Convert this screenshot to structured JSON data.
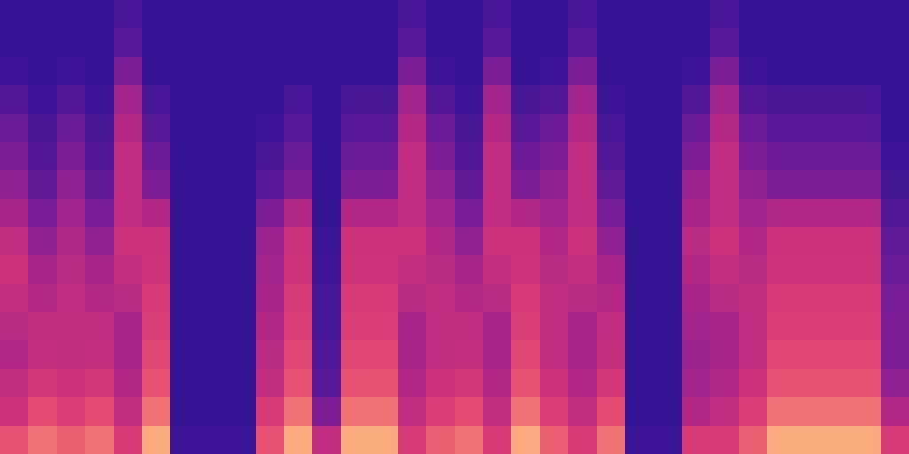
{
  "chart_data": {
    "type": "heatmap",
    "xlim": [
      0,
      32
    ],
    "ylim": [
      0,
      16
    ],
    "zlim": [
      0,
      1
    ],
    "tick_labels": false,
    "z": [
      [
        0.7,
        0.55,
        0.5,
        0.45,
        0.48,
        0.52,
        0.55,
        0.5,
        0.42,
        0.35,
        0.3,
        0.25,
        0.18,
        0.12,
        0.1,
        0.1
      ],
      [
        0.8,
        0.68,
        0.58,
        0.52,
        0.5,
        0.46,
        0.42,
        0.35,
        0.28,
        0.22,
        0.18,
        0.15,
        0.12,
        0.1,
        0.1,
        0.1
      ],
      [
        0.75,
        0.62,
        0.55,
        0.5,
        0.5,
        0.5,
        0.48,
        0.45,
        0.4,
        0.35,
        0.3,
        0.25,
        0.18,
        0.12,
        0.1,
        0.1
      ],
      [
        0.8,
        0.68,
        0.58,
        0.52,
        0.5,
        0.46,
        0.42,
        0.35,
        0.28,
        0.22,
        0.18,
        0.15,
        0.12,
        0.1,
        0.1,
        0.1
      ],
      [
        0.6,
        0.5,
        0.45,
        0.42,
        0.42,
        0.48,
        0.52,
        0.55,
        0.5,
        0.5,
        0.5,
        0.46,
        0.4,
        0.3,
        0.2,
        0.15
      ],
      [
        0.92,
        0.8,
        0.7,
        0.66,
        0.62,
        0.6,
        0.56,
        0.55,
        0.45,
        0.3,
        0.25,
        0.2,
        0.15,
        0.1,
        0.1,
        0.1
      ],
      [
        0.12,
        0.1,
        0.1,
        0.1,
        0.1,
        0.1,
        0.1,
        0.1,
        0.1,
        0.1,
        0.1,
        0.1,
        0.1,
        0.1,
        0.1,
        0.1
      ],
      [
        0.12,
        0.1,
        0.1,
        0.1,
        0.1,
        0.1,
        0.1,
        0.1,
        0.1,
        0.1,
        0.1,
        0.1,
        0.1,
        0.1,
        0.1,
        0.1
      ],
      [
        0.12,
        0.1,
        0.1,
        0.1,
        0.1,
        0.1,
        0.1,
        0.1,
        0.1,
        0.1,
        0.1,
        0.1,
        0.1,
        0.1,
        0.1,
        0.1
      ],
      [
        0.7,
        0.6,
        0.5,
        0.48,
        0.45,
        0.42,
        0.4,
        0.38,
        0.3,
        0.2,
        0.15,
        0.12,
        0.1,
        0.1,
        0.1,
        0.1
      ],
      [
        0.92,
        0.8,
        0.7,
        0.66,
        0.62,
        0.6,
        0.56,
        0.55,
        0.45,
        0.3,
        0.25,
        0.2,
        0.15,
        0.1,
        0.1,
        0.1
      ],
      [
        0.5,
        0.3,
        0.2,
        0.18,
        0.15,
        0.15,
        0.13,
        0.12,
        0.1,
        0.1,
        0.1,
        0.1,
        0.1,
        0.1,
        0.1,
        0.1
      ],
      [
        0.92,
        0.8,
        0.7,
        0.66,
        0.62,
        0.6,
        0.56,
        0.55,
        0.45,
        0.3,
        0.25,
        0.2,
        0.15,
        0.1,
        0.1,
        0.1
      ],
      [
        0.92,
        0.8,
        0.7,
        0.66,
        0.62,
        0.6,
        0.56,
        0.55,
        0.45,
        0.3,
        0.25,
        0.2,
        0.15,
        0.1,
        0.1,
        0.1
      ],
      [
        0.6,
        0.5,
        0.45,
        0.42,
        0.42,
        0.48,
        0.52,
        0.55,
        0.5,
        0.5,
        0.5,
        0.46,
        0.4,
        0.3,
        0.2,
        0.15
      ],
      [
        0.75,
        0.62,
        0.55,
        0.5,
        0.5,
        0.5,
        0.48,
        0.45,
        0.4,
        0.35,
        0.3,
        0.25,
        0.18,
        0.12,
        0.1,
        0.1
      ],
      [
        0.8,
        0.68,
        0.58,
        0.52,
        0.5,
        0.46,
        0.42,
        0.35,
        0.28,
        0.22,
        0.18,
        0.15,
        0.12,
        0.1,
        0.1,
        0.1
      ],
      [
        0.6,
        0.5,
        0.45,
        0.42,
        0.42,
        0.48,
        0.52,
        0.55,
        0.5,
        0.5,
        0.5,
        0.46,
        0.4,
        0.3,
        0.2,
        0.15
      ],
      [
        0.92,
        0.8,
        0.7,
        0.66,
        0.62,
        0.6,
        0.56,
        0.55,
        0.45,
        0.3,
        0.25,
        0.2,
        0.15,
        0.1,
        0.1,
        0.1
      ],
      [
        0.75,
        0.62,
        0.55,
        0.5,
        0.5,
        0.5,
        0.48,
        0.45,
        0.4,
        0.35,
        0.3,
        0.25,
        0.18,
        0.12,
        0.1,
        0.1
      ],
      [
        0.6,
        0.5,
        0.45,
        0.42,
        0.42,
        0.48,
        0.52,
        0.55,
        0.5,
        0.5,
        0.5,
        0.46,
        0.4,
        0.3,
        0.2,
        0.15
      ],
      [
        0.8,
        0.68,
        0.58,
        0.52,
        0.5,
        0.46,
        0.42,
        0.35,
        0.28,
        0.22,
        0.18,
        0.15,
        0.12,
        0.1,
        0.1,
        0.1
      ],
      [
        0.12,
        0.1,
        0.1,
        0.1,
        0.1,
        0.1,
        0.1,
        0.1,
        0.1,
        0.1,
        0.1,
        0.1,
        0.1,
        0.1,
        0.1,
        0.1
      ],
      [
        0.12,
        0.1,
        0.1,
        0.1,
        0.1,
        0.1,
        0.1,
        0.1,
        0.1,
        0.1,
        0.1,
        0.1,
        0.1,
        0.1,
        0.1,
        0.1
      ],
      [
        0.6,
        0.45,
        0.4,
        0.38,
        0.4,
        0.42,
        0.45,
        0.48,
        0.42,
        0.38,
        0.3,
        0.25,
        0.18,
        0.12,
        0.1,
        0.1
      ],
      [
        0.6,
        0.5,
        0.45,
        0.42,
        0.42,
        0.48,
        0.52,
        0.55,
        0.5,
        0.5,
        0.5,
        0.46,
        0.4,
        0.3,
        0.2,
        0.15
      ],
      [
        0.75,
        0.62,
        0.55,
        0.5,
        0.5,
        0.5,
        0.48,
        0.45,
        0.4,
        0.35,
        0.3,
        0.25,
        0.18,
        0.12,
        0.1,
        0.1
      ],
      [
        0.92,
        0.8,
        0.7,
        0.66,
        0.62,
        0.6,
        0.56,
        0.55,
        0.45,
        0.3,
        0.25,
        0.2,
        0.15,
        0.1,
        0.1,
        0.1
      ],
      [
        0.92,
        0.8,
        0.7,
        0.66,
        0.62,
        0.6,
        0.56,
        0.55,
        0.45,
        0.3,
        0.25,
        0.2,
        0.15,
        0.1,
        0.1,
        0.1
      ],
      [
        0.92,
        0.8,
        0.7,
        0.66,
        0.62,
        0.6,
        0.56,
        0.55,
        0.45,
        0.3,
        0.25,
        0.2,
        0.15,
        0.1,
        0.1,
        0.1
      ],
      [
        0.92,
        0.8,
        0.7,
        0.66,
        0.62,
        0.6,
        0.56,
        0.55,
        0.45,
        0.3,
        0.25,
        0.2,
        0.15,
        0.1,
        0.1,
        0.1
      ],
      [
        0.6,
        0.45,
        0.35,
        0.3,
        0.3,
        0.28,
        0.25,
        0.22,
        0.18,
        0.14,
        0.12,
        0.1,
        0.1,
        0.1,
        0.1,
        0.1
      ]
    ]
  }
}
